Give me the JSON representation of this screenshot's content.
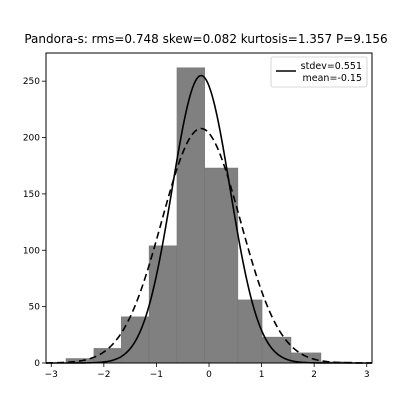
{
  "chart_data": {
    "type": "histogram",
    "title": "Pandora-s:   rms=0.748  skew=0.082  kurtosis=1.357  P=9.156",
    "xlabel": "",
    "ylabel": "",
    "xlim": [
      -3.1,
      3.1
    ],
    "ylim": [
      0,
      275
    ],
    "xticks": [
      -3,
      -2,
      -1,
      0,
      1,
      2,
      3
    ],
    "yticks": [
      0,
      50,
      100,
      150,
      200,
      250
    ],
    "bins": [
      {
        "x0": -2.72,
        "x1": -2.19,
        "count": 4
      },
      {
        "x0": -2.19,
        "x1": -1.67,
        "count": 13
      },
      {
        "x0": -1.67,
        "x1": -1.14,
        "count": 41
      },
      {
        "x0": -1.14,
        "x1": -0.61,
        "count": 104
      },
      {
        "x0": -0.61,
        "x1": -0.08,
        "count": 262
      },
      {
        "x0": -0.08,
        "x1": 0.55,
        "count": 173
      },
      {
        "x0": 0.55,
        "x1": 1.01,
        "count": 56
      },
      {
        "x0": 1.01,
        "x1": 1.56,
        "count": 23
      },
      {
        "x0": 1.56,
        "x1": 2.13,
        "count": 9
      },
      {
        "x0": 2.13,
        "x1": 2.72,
        "count": 1
      }
    ],
    "bar_color": "#808080",
    "series": [
      {
        "style": "solid",
        "mean": -0.15,
        "stdev": 0.551,
        "peak": 255
      },
      {
        "style": "dashed",
        "mean": -0.15,
        "stdev": 0.748,
        "peak": 208
      }
    ],
    "legend": {
      "placement": "upper-right",
      "line1": "stdev=0.551",
      "line2": "mean=-0.15"
    }
  }
}
